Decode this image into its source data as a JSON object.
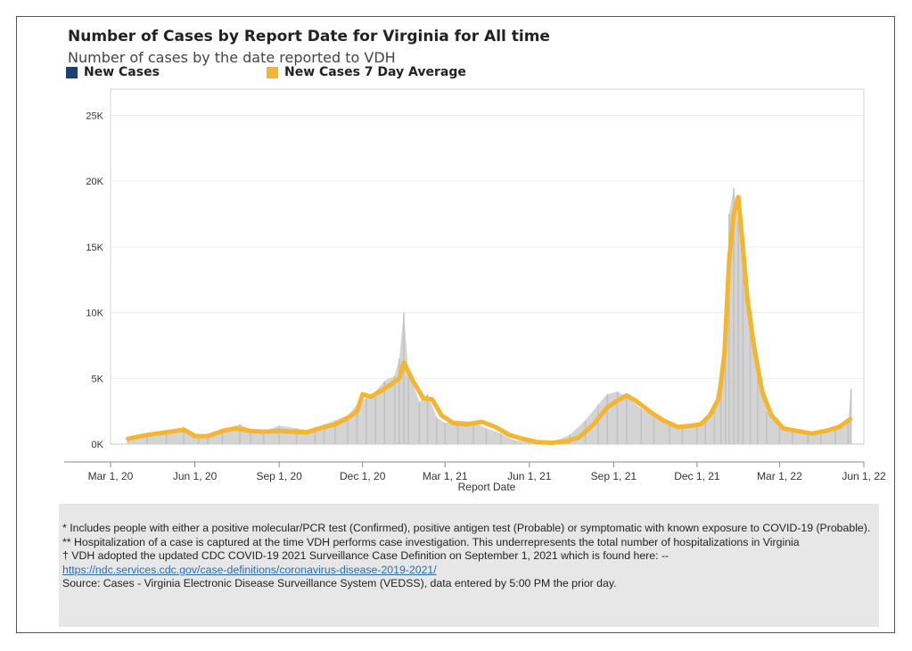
{
  "colors": {
    "new_cases": "#1f3f6e",
    "avg": "#f5b52e",
    "bars": "#cfcfcf",
    "grid": "#ececec",
    "notes_bg": "#e7e7e7",
    "link": "#2b6cb0"
  },
  "chart_data": {
    "type": "bar",
    "title": "Number of Cases by Report Date for Virginia for All time",
    "subtitle": "Number of cases by the date reported to VDH",
    "xlabel": "Report Date",
    "ylabel": "",
    "legend_position": "top-left",
    "grid": true,
    "ylim": [
      0,
      27000
    ],
    "xlim": [
      "2020-03-01",
      "2022-06-01"
    ],
    "y_ticks": [
      0,
      5000,
      10000,
      15000,
      20000,
      25000
    ],
    "y_tick_labels": [
      "0K",
      "5K",
      "10K",
      "15K",
      "20K",
      "25K"
    ],
    "x_ticks": [
      "2020-03-01",
      "2020-06-01",
      "2020-09-01",
      "2020-12-01",
      "2021-03-01",
      "2021-06-01",
      "2021-09-01",
      "2021-12-01",
      "2022-03-01",
      "2022-06-01"
    ],
    "x_tick_labels": [
      "Mar 1, 20",
      "Jun 1, 20",
      "Sep 1, 20",
      "Dec 1, 20",
      "Mar 1, 21",
      "Jun 1, 21",
      "Sep 1, 21",
      "Dec 1, 21",
      "Mar 1, 22",
      "Jun 1, 22"
    ],
    "series": [
      {
        "name": "New Cases",
        "type": "bar",
        "x": [
          "2020-03-20",
          "2020-04-10",
          "2020-05-01",
          "2020-05-20",
          "2020-06-05",
          "2020-06-15",
          "2020-07-01",
          "2020-07-20",
          "2020-08-01",
          "2020-08-15",
          "2020-09-01",
          "2020-09-20",
          "2020-10-10",
          "2020-10-20",
          "2020-11-01",
          "2020-11-15",
          "2020-11-25",
          "2020-12-05",
          "2020-12-15",
          "2020-12-25",
          "2021-01-05",
          "2021-01-10",
          "2021-01-15",
          "2021-01-20",
          "2021-02-01",
          "2021-02-10",
          "2021-02-20",
          "2021-03-01",
          "2021-03-15",
          "2021-04-01",
          "2021-04-15",
          "2021-05-01",
          "2021-05-15",
          "2021-06-01",
          "2021-06-20",
          "2021-07-01",
          "2021-07-15",
          "2021-08-01",
          "2021-08-15",
          "2021-08-25",
          "2021-09-05",
          "2021-09-15",
          "2021-10-01",
          "2021-10-15",
          "2021-11-01",
          "2021-11-15",
          "2021-12-01",
          "2021-12-10",
          "2021-12-20",
          "2021-12-27",
          "2022-01-01",
          "2022-01-05",
          "2022-01-10",
          "2022-01-15",
          "2022-01-20",
          "2022-01-28",
          "2022-02-05",
          "2022-02-15",
          "2022-03-01",
          "2022-03-15",
          "2022-04-01",
          "2022-04-15",
          "2022-05-01",
          "2022-05-15",
          "2022-05-18"
        ],
        "values": [
          300,
          800,
          1000,
          1300,
          700,
          700,
          1000,
          1500,
          1100,
          1000,
          1400,
          1200,
          1000,
          1500,
          1800,
          2200,
          3000,
          3500,
          4000,
          4800,
          5200,
          6500,
          10000,
          5500,
          3200,
          3800,
          2000,
          1600,
          1800,
          1700,
          1200,
          800,
          300,
          200,
          150,
          300,
          700,
          1800,
          3000,
          3800,
          4000,
          3600,
          2700,
          2100,
          1500,
          1400,
          1600,
          1800,
          3000,
          5500,
          9000,
          17500,
          19500,
          17000,
          14000,
          9000,
          5000,
          2500,
          1300,
          1000,
          700,
          1100,
          1300,
          1900,
          4200
        ]
      },
      {
        "name": "New Cases 7 Day Average",
        "type": "line",
        "x": [
          "2020-03-20",
          "2020-04-10",
          "2020-05-01",
          "2020-05-20",
          "2020-06-01",
          "2020-06-15",
          "2020-07-01",
          "2020-07-15",
          "2020-08-01",
          "2020-08-15",
          "2020-09-01",
          "2020-09-15",
          "2020-10-01",
          "2020-10-15",
          "2020-11-01",
          "2020-11-15",
          "2020-11-25",
          "2020-12-01",
          "2020-12-10",
          "2020-12-20",
          "2020-12-31",
          "2021-01-10",
          "2021-01-15",
          "2021-01-25",
          "2021-02-05",
          "2021-02-15",
          "2021-02-25",
          "2021-03-10",
          "2021-03-25",
          "2021-04-10",
          "2021-04-25",
          "2021-05-10",
          "2021-05-25",
          "2021-06-10",
          "2021-06-25",
          "2021-07-10",
          "2021-07-25",
          "2021-08-10",
          "2021-08-25",
          "2021-09-05",
          "2021-09-15",
          "2021-09-25",
          "2021-10-10",
          "2021-10-25",
          "2021-11-10",
          "2021-11-25",
          "2021-12-05",
          "2021-12-15",
          "2021-12-25",
          "2021-12-31",
          "2022-01-05",
          "2022-01-10",
          "2022-01-15",
          "2022-01-20",
          "2022-01-25",
          "2022-02-01",
          "2022-02-10",
          "2022-02-20",
          "2022-03-05",
          "2022-03-20",
          "2022-04-05",
          "2022-04-20",
          "2022-05-05",
          "2022-05-17"
        ],
        "values": [
          400,
          700,
          900,
          1100,
          600,
          600,
          1000,
          1200,
          1000,
          950,
          1000,
          950,
          900,
          1200,
          1500,
          2000,
          2500,
          3800,
          3600,
          4000,
          4500,
          5000,
          6200,
          4800,
          3500,
          3400,
          2200,
          1600,
          1500,
          1700,
          1300,
          700,
          400,
          150,
          100,
          200,
          500,
          1500,
          2800,
          3300,
          3700,
          3300,
          2500,
          1800,
          1300,
          1400,
          1500,
          2200,
          3500,
          7000,
          14000,
          17500,
          18800,
          15000,
          11000,
          7500,
          4000,
          2200,
          1200,
          1000,
          800,
          1000,
          1300,
          1900
        ]
      }
    ]
  },
  "notes": {
    "line1": "* Includes people with either a positive molecular/PCR test (Confirmed), positive antigen test (Probable) or symptomatic with known exposure to COVID-19 (Probable).",
    "line2": "** Hospitalization of a case is captured at the time VDH performs case investigation. This underrepresents the total number of hospitalizations in Virginia",
    "line3": "† VDH adopted the updated CDC COVID-19 2021 Surveillance Case Definition on September 1, 2021 which is found here: --",
    "link": "https://ndc.services.cdc.gov/case-definitions/coronavirus-disease-2019-2021/",
    "source": "Source:  Cases - Virginia Electronic Disease Surveillance System (VEDSS), data entered by 5:00 PM the prior day."
  }
}
